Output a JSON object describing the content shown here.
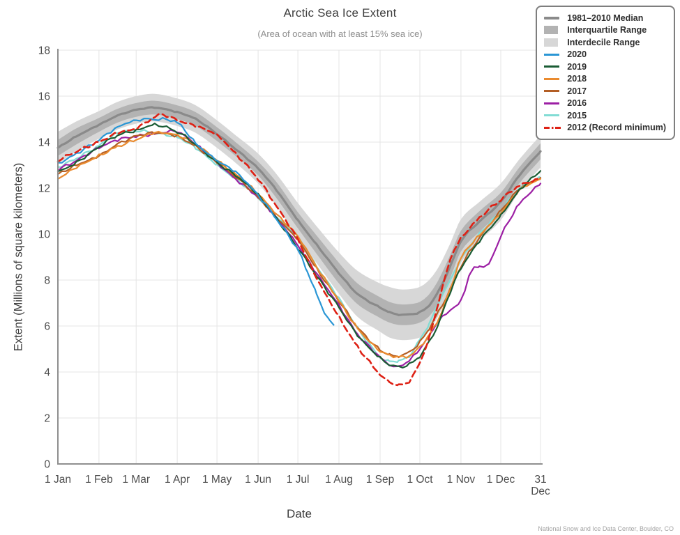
{
  "page": {
    "title": "Arctic Sea Ice Extent",
    "subtitle": "(Area of ocean with at least 15% sea ice)",
    "xlabel": "Date",
    "ylabel": "Extent (Millions of square kilometers)",
    "footer": "National Snow and Ice Data Center, Boulder, CO"
  },
  "legend": {
    "items": [
      {
        "label": "1981–2010 Median",
        "type": "thick-line",
        "color": "#8a8a8a"
      },
      {
        "label": "Interquartile Range",
        "type": "box",
        "color": "#b3b3b3"
      },
      {
        "label": "Interdecile Range",
        "type": "box",
        "color": "#d7d7d7"
      },
      {
        "label": "2020",
        "type": "line",
        "color": "#2a96d5"
      },
      {
        "label": "2019",
        "type": "line",
        "color": "#1a5c34"
      },
      {
        "label": "2018",
        "type": "line",
        "color": "#ea8b2f"
      },
      {
        "label": "2017",
        "type": "line",
        "color": "#b35e25"
      },
      {
        "label": "2016",
        "type": "line",
        "color": "#9c1fa4"
      },
      {
        "label": "2015",
        "type": "line",
        "color": "#82dcd4"
      },
      {
        "label": "2012 (Record minimum)",
        "type": "dash-line",
        "color": "#de2115"
      }
    ]
  },
  "chart_data": {
    "type": "line",
    "title": "Arctic Sea Ice Extent",
    "subtitle": "(Area of ocean with at least 15% sea ice)",
    "xlabel": "Date",
    "ylabel": "Extent (Millions of square kilometers)",
    "units": "millions of square kilometers",
    "ylim": [
      0,
      18
    ],
    "yticks": [
      0,
      2,
      4,
      6,
      8,
      10,
      12,
      14,
      16,
      18
    ],
    "xtick_days": [
      1,
      32,
      60,
      91,
      121,
      152,
      182,
      213,
      244,
      274,
      305,
      335,
      365
    ],
    "xtick_labels": [
      [
        "1 Jan"
      ],
      [
        "1 Feb"
      ],
      [
        "1 Mar"
      ],
      [
        "1 Apr"
      ],
      [
        "1 May"
      ],
      [
        "1 Jun"
      ],
      [
        "1 Jul"
      ],
      [
        "1 Aug"
      ],
      [
        "1 Sep"
      ],
      [
        "1 Oct"
      ],
      [
        "1 Nov"
      ],
      [
        "1 Dec"
      ],
      [
        "31",
        "Dec"
      ]
    ],
    "grid": true,
    "legend_position": "top-right",
    "bands": {
      "median_label": "1981–2010 Median",
      "iqr_label": "Interquartile Range",
      "idr_label": "Interdecile Range",
      "median_color": "#8a8a8a",
      "iqr_color": "#b3b3b3",
      "idr_color": "#d7d7d7",
      "days": [
        1,
        15,
        32,
        46,
        60,
        74,
        91,
        105,
        121,
        135,
        152,
        166,
        182,
        196,
        213,
        227,
        244,
        251,
        258,
        266,
        274,
        281,
        288,
        297,
        305,
        319,
        335,
        349,
        365
      ],
      "median": [
        13.75,
        14.25,
        14.75,
        15.15,
        15.4,
        15.5,
        15.3,
        15.0,
        14.35,
        13.7,
        12.85,
        11.9,
        10.6,
        9.55,
        8.3,
        7.4,
        6.8,
        6.6,
        6.5,
        6.5,
        6.6,
        6.9,
        7.5,
        8.6,
        9.7,
        10.55,
        11.4,
        12.55,
        13.6
      ],
      "iqr_upper": [
        14.1,
        14.6,
        15.05,
        15.45,
        15.7,
        15.8,
        15.6,
        15.3,
        14.65,
        14.0,
        13.15,
        12.25,
        10.95,
        9.95,
        8.75,
        7.85,
        7.25,
        7.05,
        6.95,
        6.95,
        7.05,
        7.38,
        8.0,
        9.1,
        10.15,
        11.0,
        11.8,
        12.9,
        13.95
      ],
      "iqr_lower": [
        13.4,
        13.9,
        14.45,
        14.85,
        15.1,
        15.2,
        15.0,
        14.7,
        14.05,
        13.4,
        12.55,
        11.55,
        10.25,
        9.15,
        7.85,
        6.95,
        6.35,
        6.15,
        6.05,
        6.05,
        6.15,
        6.42,
        7.0,
        8.1,
        9.25,
        10.1,
        11.0,
        12.2,
        13.25
      ],
      "idr_upper": [
        14.45,
        14.9,
        15.35,
        15.75,
        16.0,
        16.1,
        15.9,
        15.6,
        14.95,
        14.3,
        13.5,
        12.6,
        11.35,
        10.35,
        9.2,
        8.4,
        7.85,
        7.7,
        7.6,
        7.6,
        7.7,
        8.0,
        8.55,
        9.6,
        10.65,
        11.4,
        12.2,
        13.25,
        14.3
      ],
      "idr_lower": [
        13.05,
        13.6,
        14.15,
        14.55,
        14.8,
        14.9,
        14.7,
        14.4,
        13.75,
        13.1,
        12.2,
        11.2,
        9.85,
        8.75,
        7.4,
        6.4,
        5.75,
        5.5,
        5.4,
        5.4,
        5.5,
        5.8,
        6.45,
        7.6,
        8.75,
        9.7,
        10.6,
        11.85,
        12.9
      ]
    },
    "series": [
      {
        "name": "2020",
        "color": "#2a96d5",
        "days": [
          1,
          15,
          32,
          46,
          60,
          74,
          91,
          105,
          121,
          135,
          152,
          166,
          182,
          189,
          196,
          202,
          206,
          209
        ],
        "values": [
          13.05,
          13.5,
          14.1,
          14.65,
          14.95,
          15.0,
          14.85,
          13.95,
          13.2,
          12.7,
          11.7,
          10.65,
          9.3,
          8.4,
          7.4,
          6.6,
          6.25,
          6.05
        ]
      },
      {
        "name": "2019",
        "color": "#1a5c34",
        "days": [
          1,
          15,
          32,
          46,
          60,
          74,
          91,
          105,
          121,
          135,
          152,
          166,
          182,
          196,
          213,
          227,
          244,
          251,
          258,
          266,
          274,
          281,
          288,
          297,
          305,
          319,
          335,
          349,
          365
        ],
        "values": [
          12.7,
          13.1,
          13.8,
          14.3,
          14.5,
          14.75,
          14.45,
          13.9,
          13.1,
          12.55,
          11.7,
          10.65,
          9.4,
          8.2,
          6.8,
          5.6,
          4.6,
          4.35,
          4.2,
          4.35,
          4.7,
          5.3,
          6.1,
          7.5,
          8.5,
          9.7,
          10.8,
          11.9,
          12.75
        ]
      },
      {
        "name": "2018",
        "color": "#ea8b2f",
        "days": [
          1,
          15,
          32,
          46,
          60,
          74,
          91,
          105,
          121,
          135,
          152,
          166,
          182,
          196,
          213,
          227,
          244,
          251,
          258,
          266,
          274,
          281,
          288,
          297,
          305,
          319,
          335,
          349,
          365
        ],
        "values": [
          12.4,
          12.9,
          13.4,
          13.8,
          14.1,
          14.4,
          14.3,
          13.9,
          13.2,
          12.6,
          11.75,
          10.85,
          9.9,
          8.6,
          7.1,
          5.9,
          4.9,
          4.75,
          4.65,
          4.7,
          5.1,
          5.6,
          6.3,
          7.6,
          8.95,
          9.95,
          10.9,
          11.9,
          12.4
        ]
      },
      {
        "name": "2017",
        "color": "#b35e25",
        "days": [
          1,
          15,
          32,
          46,
          60,
          74,
          91,
          105,
          121,
          135,
          152,
          166,
          182,
          196,
          213,
          227,
          244,
          251,
          258,
          266,
          274,
          281,
          288,
          297,
          305,
          319,
          335,
          349,
          365
        ],
        "values": [
          12.6,
          13.0,
          13.4,
          13.9,
          14.25,
          14.4,
          14.25,
          13.8,
          13.15,
          12.5,
          11.6,
          10.7,
          9.75,
          8.5,
          7.1,
          5.95,
          4.95,
          4.75,
          4.7,
          4.85,
          5.3,
          5.9,
          6.6,
          7.6,
          8.6,
          9.85,
          11.0,
          11.95,
          12.45
        ]
      },
      {
        "name": "2016",
        "color": "#9c1fa4",
        "days": [
          1,
          15,
          32,
          46,
          60,
          74,
          91,
          105,
          121,
          135,
          152,
          166,
          182,
          196,
          213,
          227,
          244,
          251,
          258,
          266,
          274,
          281,
          288,
          297,
          305,
          312,
          319,
          326,
          335,
          349,
          365
        ],
        "values": [
          12.8,
          13.2,
          13.75,
          14.1,
          14.25,
          14.35,
          14.45,
          13.9,
          13.1,
          12.4,
          11.6,
          10.7,
          9.5,
          8.3,
          6.9,
          5.65,
          4.65,
          4.3,
          4.25,
          4.5,
          5.0,
          5.6,
          6.2,
          6.7,
          7.1,
          8.3,
          8.6,
          8.7,
          9.9,
          11.3,
          12.2
        ]
      },
      {
        "name": "2015",
        "color": "#82dcd4",
        "days": [
          1,
          15,
          32,
          46,
          60,
          74,
          91,
          105,
          121,
          135,
          152,
          166,
          182,
          196,
          213,
          227,
          244,
          251,
          258,
          266,
          274,
          281,
          288,
          297,
          305,
          319,
          335,
          349,
          365
        ],
        "values": [
          12.9,
          13.3,
          13.85,
          14.4,
          14.5,
          14.4,
          14.2,
          13.75,
          13.0,
          12.4,
          11.6,
          10.75,
          9.85,
          8.6,
          7.2,
          5.9,
          4.65,
          4.45,
          4.5,
          4.7,
          5.4,
          6.1,
          7.0,
          8.0,
          8.9,
          10.0,
          11.0,
          12.0,
          12.45
        ]
      },
      {
        "name": "2012 (Record minimum)",
        "color": "#de2115",
        "dash": [
          9,
          5.5
        ],
        "days": [
          1,
          15,
          32,
          46,
          60,
          74,
          80,
          91,
          105,
          121,
          135,
          152,
          166,
          182,
          196,
          213,
          227,
          244,
          251,
          258,
          266,
          274,
          281,
          288,
          297,
          305,
          319,
          335,
          349,
          365
        ],
        "values": [
          13.2,
          13.6,
          14.0,
          14.4,
          14.6,
          15.1,
          15.2,
          14.95,
          14.7,
          14.3,
          13.5,
          12.4,
          11.2,
          9.75,
          8.1,
          6.4,
          5.1,
          3.9,
          3.55,
          3.45,
          3.6,
          4.4,
          5.5,
          7.0,
          8.9,
          9.8,
          10.7,
          11.5,
          12.1,
          12.4
        ]
      }
    ]
  }
}
